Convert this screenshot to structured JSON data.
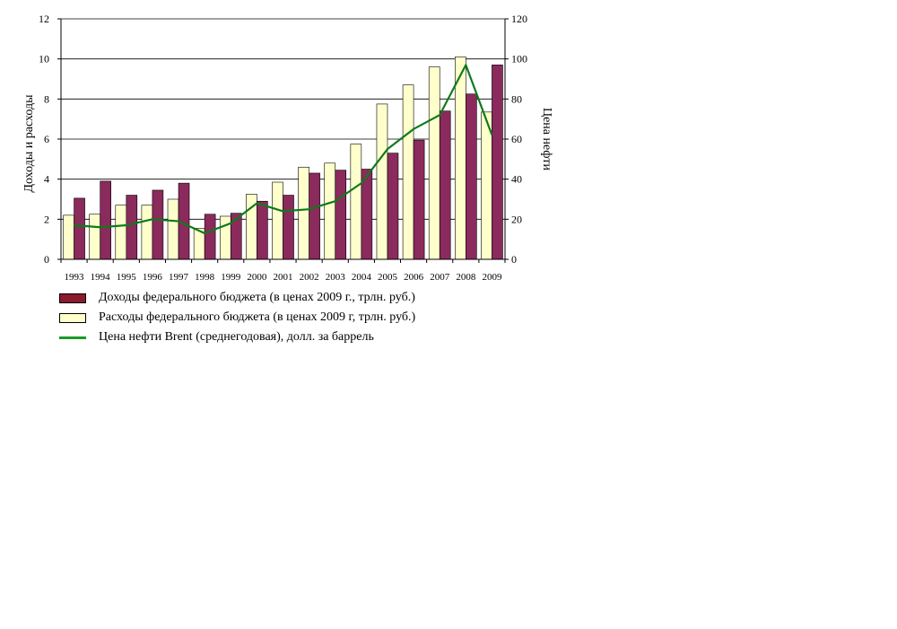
{
  "chart_data": {
    "type": "bar",
    "categories": [
      "1993",
      "1994",
      "1995",
      "1996",
      "1997",
      "1998",
      "1999",
      "2000",
      "2001",
      "2002",
      "2003",
      "2004",
      "2005",
      "2006",
      "2007",
      "2008",
      "2009"
    ],
    "series": [
      {
        "name": "Расходы федерального бюджета (в ценах 2009 г, трлн. руб.)",
        "axis": "left",
        "kind": "bar",
        "color": "#ffffcc",
        "values": [
          2.2,
          2.25,
          2.7,
          2.7,
          3.0,
          1.55,
          2.15,
          3.25,
          3.85,
          4.6,
          4.8,
          5.75,
          7.75,
          8.7,
          9.6,
          10.1,
          7.35
        ]
      },
      {
        "name": "Доходы федерального бюджета (в ценах 2009 г., трлн. руб.)",
        "axis": "left",
        "kind": "bar",
        "color": "#8b2a5c",
        "values": [
          3.05,
          3.9,
          3.2,
          3.45,
          3.8,
          2.25,
          2.3,
          2.9,
          3.2,
          4.3,
          4.45,
          4.5,
          5.3,
          5.95,
          7.4,
          8.25,
          9.7
        ]
      },
      {
        "name": "Цена нефти Brent (среднегодовая), долл. за баррель",
        "axis": "right",
        "kind": "line",
        "color": "#1a9a2a",
        "values": [
          17,
          16,
          17,
          20,
          19,
          13,
          18,
          28,
          24,
          25,
          29,
          38,
          55,
          65,
          72,
          97,
          62
        ]
      }
    ],
    "y_left": {
      "label": "Доходы и расходы",
      "min": 0,
      "max": 12,
      "ticks": [
        "0",
        "2",
        "4",
        "6",
        "8",
        "10",
        "12"
      ]
    },
    "y_right": {
      "label": "Цена нефти",
      "min": 0,
      "max": 120,
      "ticks": [
        "0",
        "20",
        "40",
        "60",
        "80",
        "100",
        "120"
      ]
    },
    "legend": {
      "position": "bottom",
      "items": [
        {
          "label": "Доходы федерального бюджета (в ценах 2009 г., трлн. руб.)",
          "kind": "box",
          "color": "#8b1a2e"
        },
        {
          "label": "Расходы федерального бюджета (в ценах 2009 г, трлн. руб.)",
          "kind": "box",
          "color": "#ffffcc"
        },
        {
          "label": "Цена нефти Brent (среднегодовая), долл. за баррель",
          "kind": "line",
          "color": "#1a9a2a"
        }
      ]
    },
    "grid": "horizontal"
  }
}
